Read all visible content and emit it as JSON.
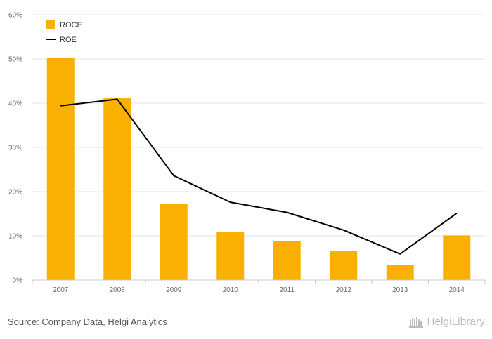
{
  "chart_data": {
    "type": "bar",
    "categories": [
      "2007",
      "2008",
      "2009",
      "2010",
      "2011",
      "2012",
      "2013",
      "2014"
    ],
    "series": [
      {
        "name": "ROCE",
        "kind": "bar",
        "color": "#F9B000",
        "values": [
          50.2,
          41.1,
          17.3,
          10.9,
          8.8,
          6.6,
          3.4,
          10.1
        ]
      },
      {
        "name": "ROE",
        "kind": "line",
        "color": "#000000",
        "values": [
          39.4,
          40.9,
          23.6,
          17.6,
          15.3,
          11.3,
          5.9,
          15.1
        ]
      }
    ],
    "yticks": [
      "0%",
      "10%",
      "20%",
      "30%",
      "40%",
      "50%",
      "60%"
    ],
    "ylim": [
      0,
      60
    ],
    "legend_position": "top-left",
    "grid": true
  },
  "footer": {
    "source": "Source: Company Data, Helgi Analytics",
    "brand": "HelgiLibrary"
  }
}
